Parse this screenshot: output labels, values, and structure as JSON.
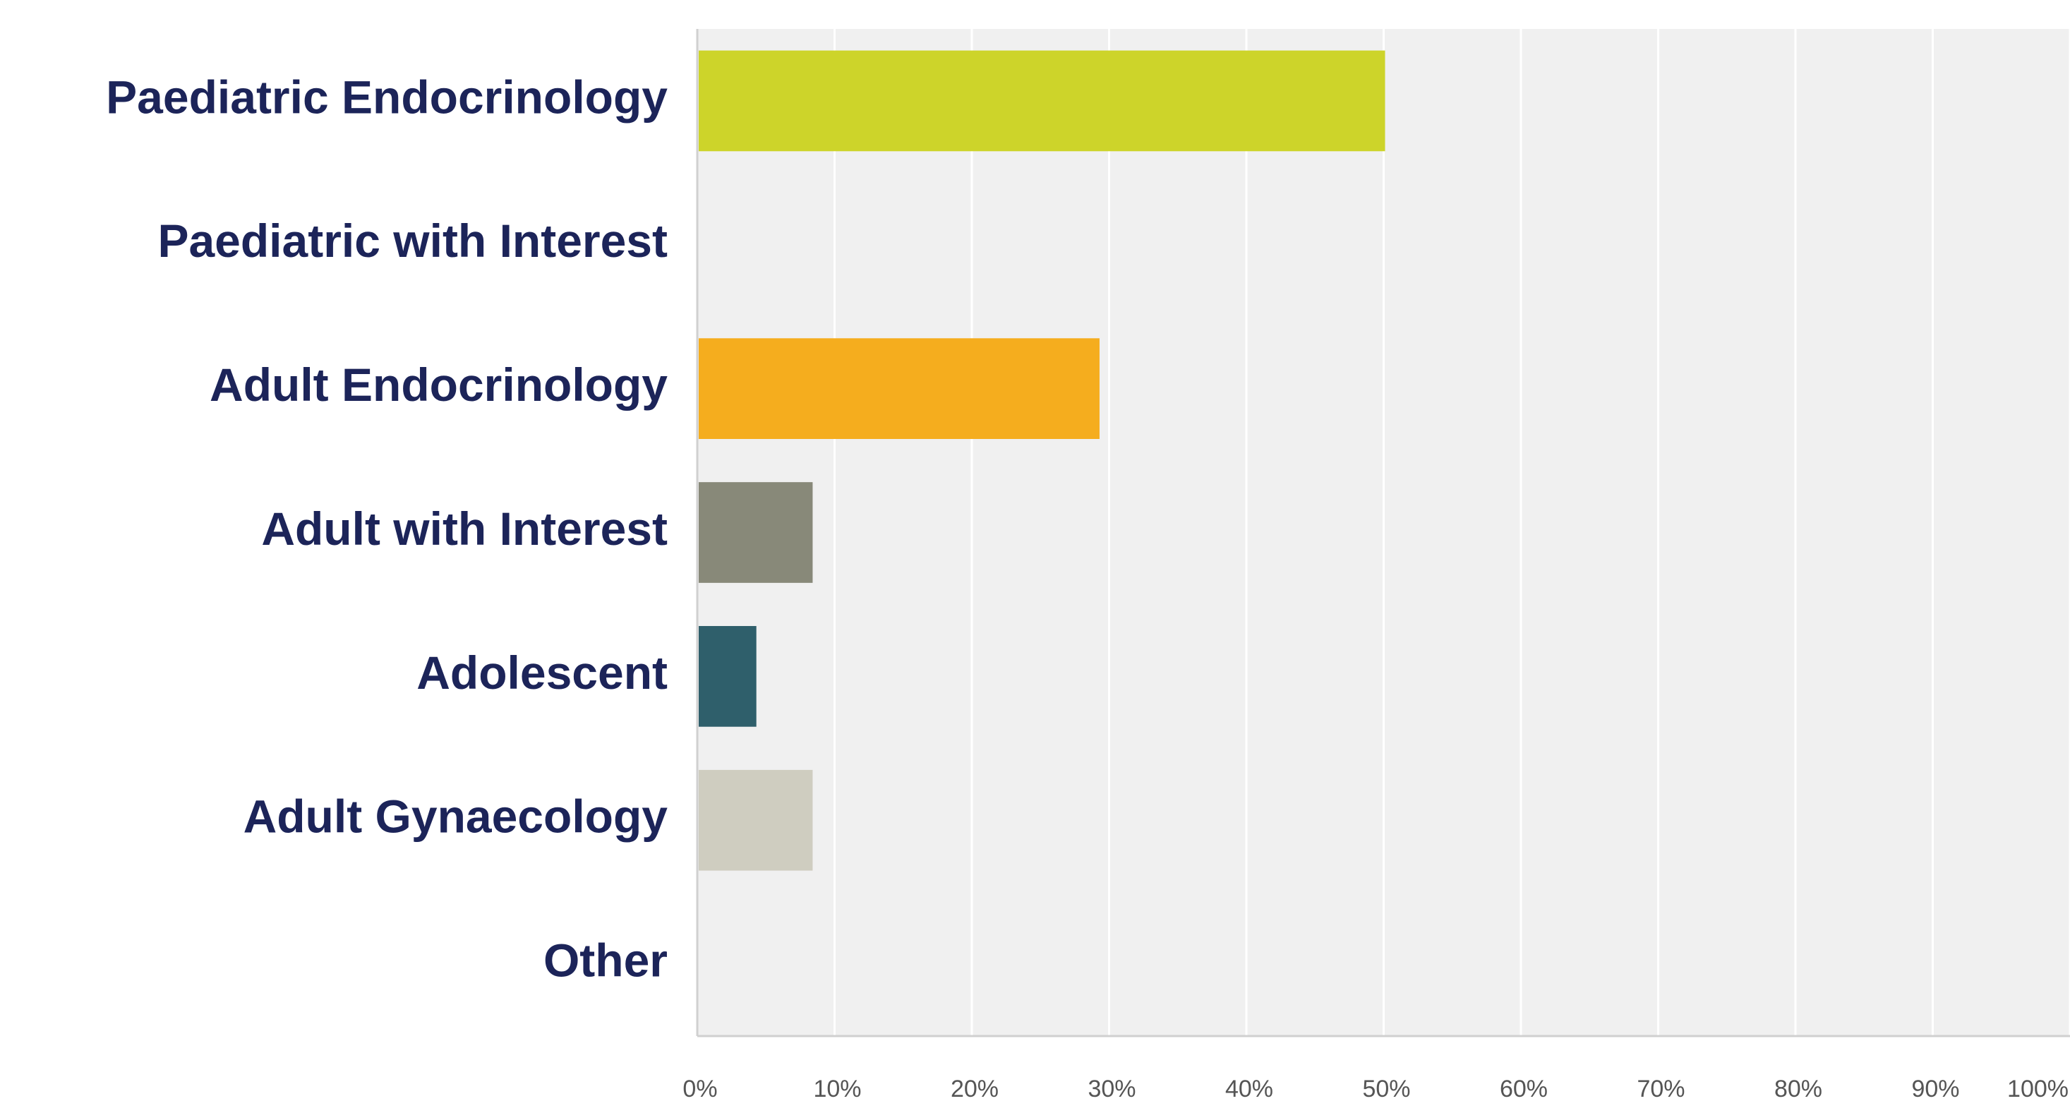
{
  "chart_data": {
    "type": "barh",
    "categories": [
      "Paediatric Endocrinology",
      "Paediatric with Interest",
      "Adult Endocrinology",
      "Adult with Interest",
      "Adolescent",
      "Adult Gynaecology",
      "Other"
    ],
    "values": [
      50,
      0,
      29.2,
      8.3,
      4.2,
      8.3,
      0
    ],
    "colors": [
      "#cdd42a",
      "#6d8f9c",
      "#f5ad1e",
      "#888979",
      "#2f5f6b",
      "#cfcdc0",
      "#9b9a8c"
    ],
    "xlim": [
      0,
      100
    ],
    "xticks": [
      {
        "value": 0,
        "label": "0%"
      },
      {
        "value": 10,
        "label": "10%"
      },
      {
        "value": 20,
        "label": "20%"
      },
      {
        "value": 30,
        "label": "30%"
      },
      {
        "value": 40,
        "label": "40%"
      },
      {
        "value": 50,
        "label": "50%"
      },
      {
        "value": 60,
        "label": "60%"
      },
      {
        "value": 70,
        "label": "70%"
      },
      {
        "value": 80,
        "label": "80%"
      },
      {
        "value": 90,
        "label": "90%"
      },
      {
        "value": 100,
        "label": "100%"
      }
    ],
    "grid": true
  }
}
